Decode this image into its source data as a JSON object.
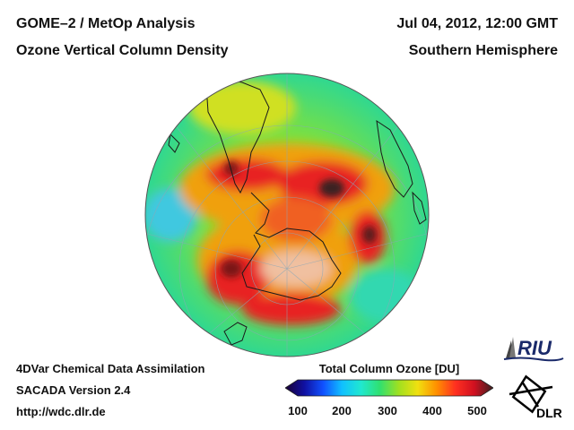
{
  "header": {
    "title_left_1": "GOME–2 / MetOp Analysis",
    "title_left_2": "Ozone Vertical Column Density",
    "title_right_1": "Jul 04, 2012, 12:00 GMT",
    "title_right_2": "Southern Hemisphere"
  },
  "footer": {
    "line1": "4DVar Chemical Data Assimilation",
    "line2": "SACADA Version 2.4",
    "line3": "http://wdc.dlr.de"
  },
  "colorbar": {
    "title": "Total Column Ozone [DU]",
    "ticks": [
      "100",
      "200",
      "300",
      "400",
      "500"
    ],
    "range": [
      100,
      500
    ],
    "colors": [
      "#1a0033",
      "#1010a0",
      "#1050ff",
      "#10c0ff",
      "#20e8d0",
      "#30e070",
      "#a0e020",
      "#f0e010",
      "#ff9000",
      "#ff3020",
      "#d01020",
      "#3a2020"
    ]
  },
  "logos": {
    "riu": "RIU",
    "dlr": "DLR"
  },
  "map": {
    "projection": "orthographic south polar",
    "background_color": "#3fe06a",
    "high_color": "#e8201e",
    "max_color": "#3a2222"
  }
}
